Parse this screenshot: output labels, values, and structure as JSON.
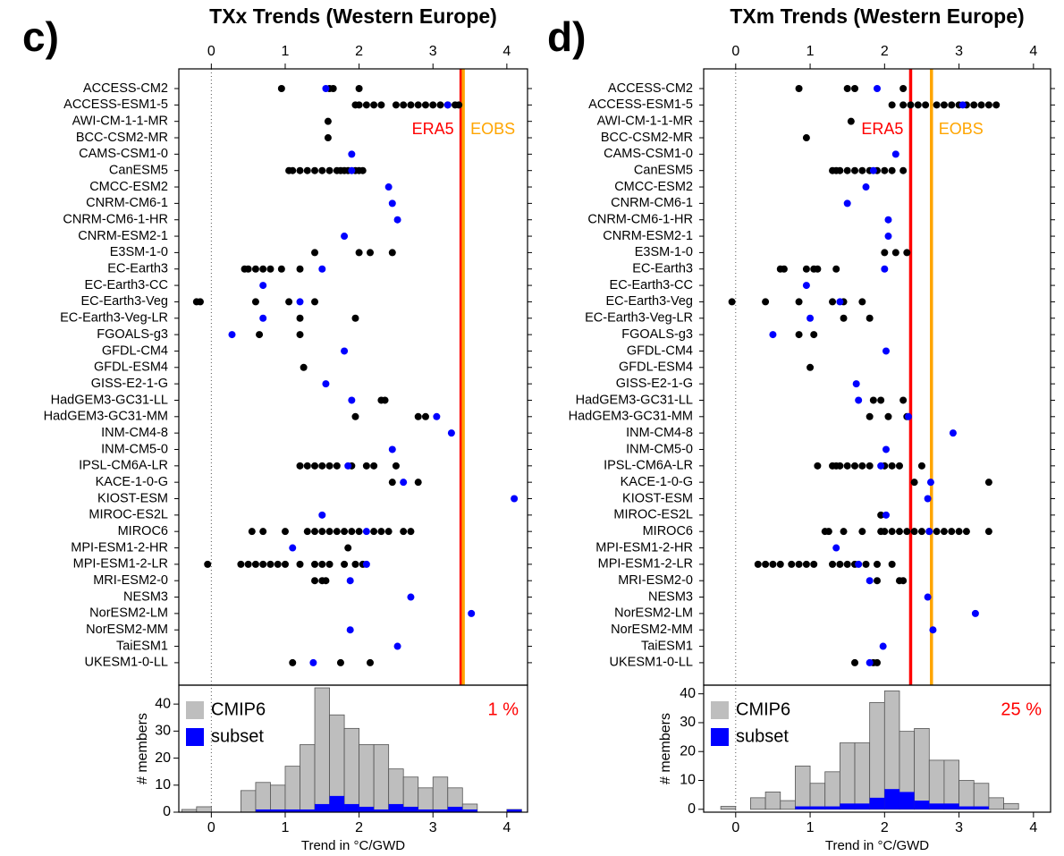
{
  "chart_data": [
    {
      "type": "dot-histogram",
      "panel_label": "c)",
      "title": "TXx Trends (Western Europe)",
      "xlim": [
        -0.44,
        4.28
      ],
      "xticks": [
        0,
        1,
        2,
        3,
        4
      ],
      "categories": [
        "ACCESS-CM2",
        "ACCESS-ESM1-5",
        "AWI-CM-1-1-MR",
        "BCC-CSM2-MR",
        "CAMS-CSM1-0",
        "CanESM5",
        "CMCC-ESM2",
        "CNRM-CM6-1",
        "CNRM-CM6-1-HR",
        "CNRM-ESM2-1",
        "E3SM-1-0",
        "EC-Earth3",
        "EC-Earth3-CC",
        "EC-Earth3-Veg",
        "EC-Earth3-Veg-LR",
        "FGOALS-g3",
        "GFDL-CM4",
        "GFDL-ESM4",
        "GISS-E2-1-G",
        "HadGEM3-GC31-LL",
        "HadGEM3-GC31-MM",
        "INM-CM4-8",
        "INM-CM5-0",
        "IPSL-CM6A-LR",
        "KACE-1-0-G",
        "KIOST-ESM",
        "MIROC-ES2L",
        "MIROC6",
        "MPI-ESM1-2-HR",
        "MPI-ESM1-2-LR",
        "MRI-ESM2-0",
        "NESM3",
        "NorESM2-LM",
        "NorESM2-MM",
        "TaiESM1",
        "UKESM1-0-LL"
      ],
      "member_color": "#000000",
      "subset_color": "#0000ff",
      "members": [
        [
          0.95,
          1.6,
          1.65,
          2.0
        ],
        [
          1.95,
          2.0,
          2.1,
          2.2,
          2.3,
          2.5,
          2.6,
          2.7,
          2.8,
          2.9,
          3.0,
          3.1,
          3.2,
          3.3,
          3.35
        ],
        [
          1.58
        ],
        [
          1.58
        ],
        [],
        [
          1.05,
          1.1,
          1.2,
          1.3,
          1.4,
          1.5,
          1.6,
          1.7,
          1.75,
          1.8,
          1.85,
          1.95,
          2.0,
          2.05
        ],
        [],
        [],
        [],
        [],
        [
          1.4,
          2.0,
          2.15,
          2.45
        ],
        [
          0.45,
          0.5,
          0.6,
          0.7,
          0.8,
          0.95,
          1.2
        ],
        [],
        [
          -0.2,
          -0.15,
          0.6,
          1.05,
          1.4
        ],
        [
          1.2,
          1.95
        ],
        [
          0.65,
          1.2
        ],
        [],
        [
          1.25
        ],
        [],
        [
          2.3,
          2.35
        ],
        [
          1.95,
          2.8,
          2.9
        ],
        [],
        [],
        [
          1.2,
          1.3,
          1.4,
          1.5,
          1.6,
          1.7,
          1.9,
          2.1,
          2.2,
          2.5
        ],
        [
          2.45,
          2.8
        ],
        [],
        [],
        [
          0.55,
          0.7,
          1.0,
          1.3,
          1.4,
          1.5,
          1.6,
          1.7,
          1.8,
          1.9,
          2.0,
          2.2,
          2.3,
          2.4,
          2.6,
          2.7
        ],
        [
          1.85
        ],
        [
          -0.05,
          0.4,
          0.5,
          0.6,
          0.7,
          0.8,
          0.9,
          1.0,
          1.2,
          1.4,
          1.5,
          1.6,
          1.8,
          1.95,
          2.05
        ],
        [
          1.4,
          1.5,
          1.55
        ],
        [],
        [],
        [],
        [],
        [
          1.1,
          1.75,
          2.15
        ]
      ],
      "subset": [
        [
          1.55
        ],
        [
          3.2
        ],
        [],
        [],
        [
          1.9
        ],
        [
          1.9
        ],
        [
          2.4
        ],
        [
          2.45
        ],
        [
          2.52
        ],
        [
          1.8
        ],
        [],
        [
          1.5
        ],
        [
          0.7
        ],
        [
          1.2
        ],
        [
          0.7
        ],
        [
          0.28
        ],
        [
          1.8
        ],
        [],
        [
          1.55
        ],
        [
          1.9
        ],
        [
          3.05
        ],
        [
          3.25
        ],
        [
          2.45
        ],
        [
          1.85
        ],
        [
          2.6
        ],
        [
          4.1
        ],
        [
          1.5
        ],
        [
          2.1
        ],
        [
          1.1
        ],
        [
          2.1
        ],
        [
          1.88
        ],
        [
          2.7
        ],
        [
          3.52
        ],
        [
          1.88
        ],
        [
          2.52
        ],
        [
          1.38
        ]
      ],
      "ref_lines": [
        {
          "label": "ERA5",
          "value": 3.38,
          "color": "#ff0000"
        },
        {
          "label": "EOBS",
          "value": 3.41,
          "color": "#ffa500"
        }
      ],
      "histogram": {
        "bins": [
          -0.4,
          -0.2,
          0,
          0.2,
          0.4,
          0.6,
          0.8,
          1.0,
          1.2,
          1.4,
          1.6,
          1.8,
          2.0,
          2.2,
          2.4,
          2.6,
          2.8,
          3.0,
          3.2,
          3.4,
          3.6,
          3.8,
          4.0,
          4.2
        ],
        "series": [
          {
            "name": "CMIP6",
            "color": "#bebebe",
            "values": [
              1,
              2,
              0,
              0,
              8,
              11,
              10,
              17,
              25,
              46,
              36,
              31,
              25,
              25,
              16,
              13,
              9,
              13,
              9,
              3,
              0,
              0,
              1
            ]
          },
          {
            "name": "subset",
            "color": "#0000ff",
            "values": [
              0,
              0,
              0,
              0,
              0,
              1,
              1,
              1,
              1,
              3,
              6,
              3,
              2,
              1,
              3,
              2,
              1,
              1,
              2,
              1,
              0,
              0,
              1
            ]
          }
        ],
        "ylim": [
          0,
          47
        ],
        "yticks": [
          0,
          10,
          20,
          30,
          40
        ],
        "ylabel": "# members",
        "xlabel": "Trend in °C/GWD",
        "annotation": "1 %"
      }
    },
    {
      "type": "dot-histogram",
      "panel_label": "d)",
      "title": "TXm Trends (Western Europe)",
      "xlim": [
        -0.43,
        4.23
      ],
      "xticks": [
        0,
        1,
        2,
        3,
        4
      ],
      "categories": [
        "ACCESS-CM2",
        "ACCESS-ESM1-5",
        "AWI-CM-1-1-MR",
        "BCC-CSM2-MR",
        "CAMS-CSM1-0",
        "CanESM5",
        "CMCC-ESM2",
        "CNRM-CM6-1",
        "CNRM-CM6-1-HR",
        "CNRM-ESM2-1",
        "E3SM-1-0",
        "EC-Earth3",
        "EC-Earth3-CC",
        "EC-Earth3-Veg",
        "EC-Earth3-Veg-LR",
        "FGOALS-g3",
        "GFDL-CM4",
        "GFDL-ESM4",
        "GISS-E2-1-G",
        "HadGEM3-GC31-LL",
        "HadGEM3-GC31-MM",
        "INM-CM4-8",
        "INM-CM5-0",
        "IPSL-CM6A-LR",
        "KACE-1-0-G",
        "KIOST-ESM",
        "MIROC-ES2L",
        "MIROC6",
        "MPI-ESM1-2-HR",
        "MPI-ESM1-2-LR",
        "MRI-ESM2-0",
        "NESM3",
        "NorESM2-LM",
        "NorESM2-MM",
        "TaiESM1",
        "UKESM1-0-LL"
      ],
      "member_color": "#000000",
      "subset_color": "#0000ff",
      "members": [
        [
          0.85,
          1.5,
          1.6,
          2.25
        ],
        [
          2.1,
          2.25,
          2.35,
          2.45,
          2.55,
          2.7,
          2.8,
          2.9,
          3.0,
          3.1,
          3.2,
          3.3,
          3.4,
          3.5
        ],
        [
          1.55
        ],
        [
          0.95
        ],
        [],
        [
          1.3,
          1.35,
          1.4,
          1.5,
          1.6,
          1.7,
          1.8,
          1.9,
          2.0,
          2.1,
          2.25
        ],
        [],
        [],
        [],
        [],
        [
          2.0,
          2.15,
          2.3
        ],
        [
          0.6,
          0.65,
          0.95,
          1.05,
          1.1,
          1.35
        ],
        [],
        [
          -0.05,
          0.4,
          0.85,
          1.3,
          1.45,
          1.7
        ],
        [
          1.45,
          1.8
        ],
        [
          0.85,
          1.05
        ],
        [],
        [
          1.0
        ],
        [],
        [
          1.85,
          1.95,
          2.25
        ],
        [
          1.8,
          2.05,
          2.3
        ],
        [],
        [],
        [
          1.1,
          1.3,
          1.35,
          1.4,
          1.5,
          1.6,
          1.7,
          1.8,
          2.0,
          2.1,
          2.2,
          2.5
        ],
        [
          2.4,
          3.4
        ],
        [],
        [
          1.95
        ],
        [
          1.2,
          1.25,
          1.45,
          1.7,
          1.95,
          2.0,
          2.1,
          2.2,
          2.3,
          2.4,
          2.5,
          2.6,
          2.7,
          2.8,
          2.9,
          3.0,
          3.1,
          3.4
        ],
        [],
        [
          0.3,
          0.4,
          0.5,
          0.6,
          0.75,
          0.85,
          0.95,
          1.05,
          1.3,
          1.4,
          1.5,
          1.6,
          1.75,
          1.9,
          2.1
        ],
        [
          1.9,
          2.2,
          2.25
        ],
        [],
        [],
        [],
        [],
        [
          1.6,
          1.85,
          1.9
        ]
      ],
      "subset": [
        [
          1.9
        ],
        [
          3.05
        ],
        [],
        [],
        [
          2.15
        ],
        [
          1.85
        ],
        [
          1.75
        ],
        [
          1.5
        ],
        [
          2.05
        ],
        [
          2.05
        ],
        [],
        [
          2.0
        ],
        [
          0.95
        ],
        [
          1.4
        ],
        [
          1.0
        ],
        [
          0.5
        ],
        [
          2.02
        ],
        [],
        [
          1.62
        ],
        [
          1.65
        ],
        [
          2.32
        ],
        [
          2.92
        ],
        [
          2.02
        ],
        [
          1.95
        ],
        [
          2.62
        ],
        [
          2.58
        ],
        [
          2.02
        ],
        [
          2.6
        ],
        [
          1.35
        ],
        [
          1.65
        ],
        [
          1.8
        ],
        [
          2.58
        ],
        [
          3.22
        ],
        [
          2.65
        ],
        [
          1.98
        ],
        [
          1.8
        ]
      ],
      "ref_lines": [
        {
          "label": "ERA5",
          "value": 2.35,
          "color": "#ff0000"
        },
        {
          "label": "EOBS",
          "value": 2.63,
          "color": "#ffa500"
        }
      ],
      "histogram": {
        "bins": [
          -0.2,
          0,
          0.2,
          0.4,
          0.6,
          0.8,
          1.0,
          1.2,
          1.4,
          1.6,
          1.8,
          2.0,
          2.2,
          2.4,
          2.6,
          2.8,
          3.0,
          3.2,
          3.4,
          3.6,
          3.8
        ],
        "series": [
          {
            "name": "CMIP6",
            "color": "#bebebe",
            "values": [
              1,
              0,
              4,
              6,
              3,
              15,
              9,
              13,
              23,
              23,
              37,
              41,
              27,
              28,
              17,
              17,
              10,
              9,
              4,
              2
            ]
          },
          {
            "name": "subset",
            "color": "#0000ff",
            "values": [
              0,
              0,
              0,
              0,
              0,
              1,
              1,
              1,
              2,
              2,
              4,
              7,
              6,
              3,
              2,
              2,
              1,
              1,
              0,
              0
            ]
          }
        ],
        "ylim": [
          -1,
          43
        ],
        "yticks": [
          0,
          10,
          20,
          30,
          40
        ],
        "ylabel": "# members",
        "xlabel": "Trend in °C/GWD",
        "annotation": "25 %"
      }
    }
  ]
}
